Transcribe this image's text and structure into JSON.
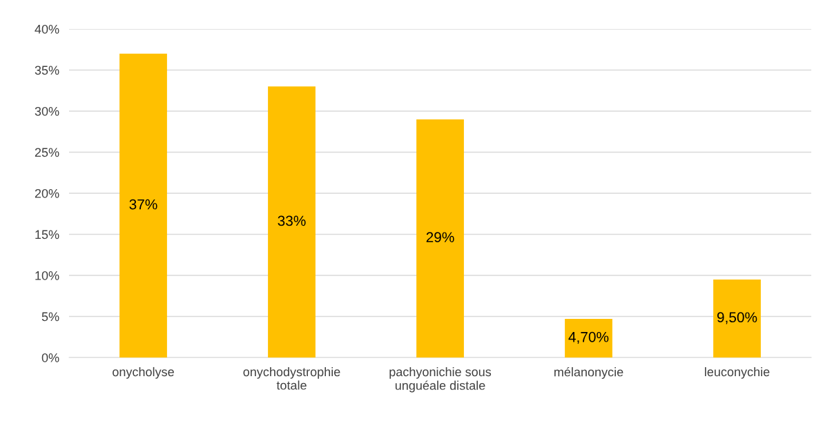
{
  "chart_data": {
    "type": "bar",
    "categories": [
      "onycholyse",
      "onychodystrophie\ntotale",
      "pachyonichie sous\nunguéale distale",
      "mélanonycie",
      "leuconychie"
    ],
    "values": [
      37,
      33,
      29,
      4.7,
      9.5
    ],
    "value_labels": [
      "37%",
      "33%",
      "29%",
      "4,70%",
      "9,50%"
    ],
    "color": "#ffc000",
    "ylim": [
      0,
      40
    ],
    "yticks": [
      {
        "value": 0,
        "label": "0%"
      },
      {
        "value": 5,
        "label": "5%"
      },
      {
        "value": 10,
        "label": "10%"
      },
      {
        "value": 15,
        "label": "15%"
      },
      {
        "value": 20,
        "label": "20%"
      },
      {
        "value": 25,
        "label": "25%"
      },
      {
        "value": 30,
        "label": "30%"
      },
      {
        "value": 35,
        "label": "35%"
      },
      {
        "value": 40,
        "label": "40%"
      }
    ],
    "grid": "y",
    "legend": false
  }
}
